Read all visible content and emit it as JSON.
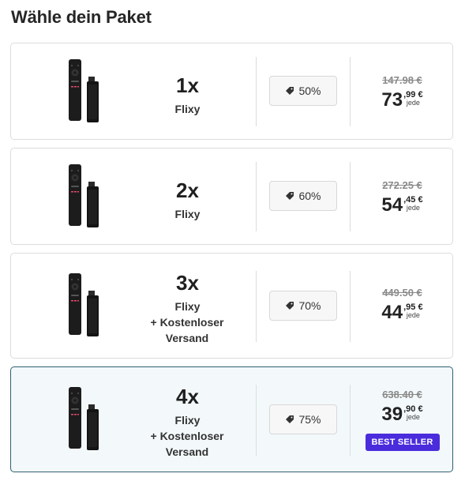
{
  "title": "Wähle dein Paket",
  "currency": "€",
  "packages": [
    {
      "qty": "1x",
      "name": "Flixy",
      "shipping": "",
      "discount": "50%",
      "old_price": "147.98 €",
      "price_whole": "73",
      "price_cents": ",99 €",
      "per_unit": "jede",
      "badge": "",
      "selected": false
    },
    {
      "qty": "2x",
      "name": "Flixy",
      "shipping": "",
      "discount": "60%",
      "old_price": "272.25 €",
      "price_whole": "54",
      "price_cents": ",45 €",
      "per_unit": "jede",
      "badge": "",
      "selected": false
    },
    {
      "qty": "3x",
      "name": "Flixy",
      "shipping": "+ Kostenloser Versand",
      "discount": "70%",
      "old_price": "449.50 €",
      "price_whole": "44",
      "price_cents": ",95 €",
      "per_unit": "jede",
      "badge": "",
      "selected": false
    },
    {
      "qty": "4x",
      "name": "Flixy",
      "shipping": "+ Kostenloser Versand",
      "discount": "75%",
      "old_price": "638.40 €",
      "price_whole": "39",
      "price_cents": ",90 €",
      "per_unit": "jede",
      "badge": "BEST SELLER",
      "selected": true
    }
  ],
  "colors": {
    "selected_border": "#2f5f72",
    "selected_bg": "#f3f9fb",
    "badge_bg": "#4a2cdc"
  },
  "icons": {
    "discount": "tag-icon",
    "product": "tv-stick-remote-image"
  }
}
